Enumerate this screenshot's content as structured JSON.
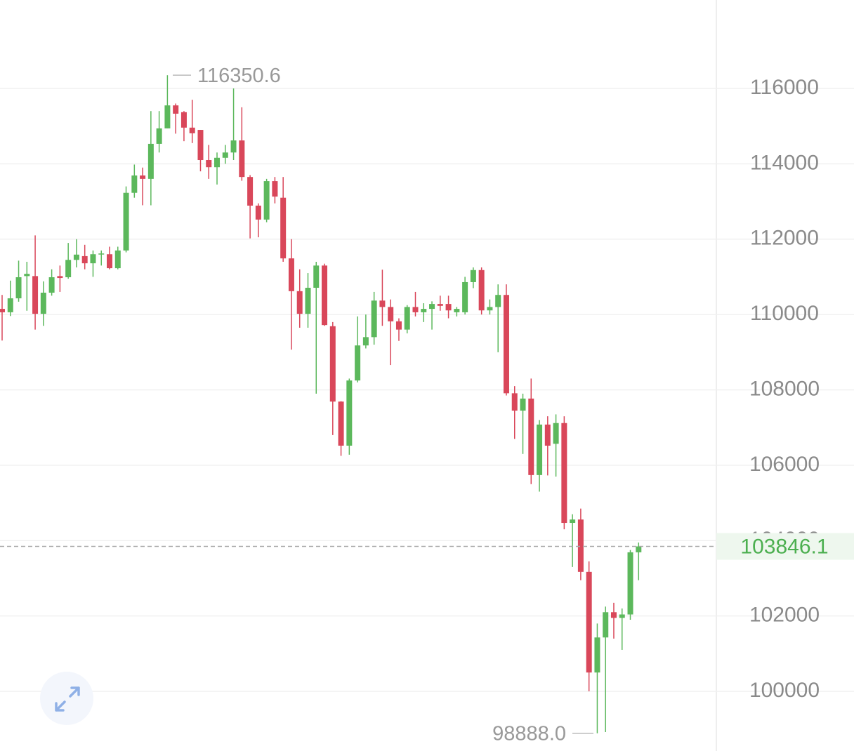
{
  "chart_data": {
    "type": "candlestick",
    "open": [
      110150,
      110060,
      110430,
      111020,
      111020,
      110020,
      110580,
      111020,
      110990,
      111450,
      111550,
      111360,
      111600,
      111600,
      111230,
      111700,
      113230,
      113690,
      113600,
      114530,
      114940,
      115550,
      115370,
      114960,
      114900,
      114100,
      113910,
      114160,
      114300,
      114620,
      113650,
      112890,
      112520,
      113540,
      113100,
      111490,
      110620,
      110020,
      110710,
      111300,
      109690,
      107690,
      106520,
      108250,
      109180,
      109400,
      110370,
      110200,
      109820,
      109600,
      110200,
      110060,
      110150,
      110280,
      110280,
      110060,
      110060,
      110860,
      111180,
      110110,
      110200,
      110520,
      107910,
      107450,
      107770,
      105740,
      107080,
      106570,
      107120,
      104470,
      104560,
      103170,
      100500,
      101430,
      102100,
      101950,
      102040,
      103690
    ],
    "high": [
      110520,
      110900,
      111430,
      111400,
      112100,
      110880,
      111200,
      111300,
      111900,
      112000,
      111850,
      111700,
      111700,
      111800,
      111800,
      113400,
      113980,
      113900,
      115400,
      115400,
      116350.6,
      115600,
      115400,
      115700,
      114900,
      114500,
      114300,
      114500,
      116000,
      115500,
      113700,
      112950,
      113600,
      113650,
      113650,
      112000,
      111200,
      111100,
      111400,
      111350,
      109800,
      107700,
      108300,
      109950,
      110000,
      110600,
      111190,
      110400,
      109900,
      110250,
      110600,
      110300,
      110350,
      110500,
      110500,
      110200,
      111000,
      111250,
      111250,
      110400,
      110800,
      110800,
      108100,
      107900,
      108300,
      107200,
      107300,
      107350,
      107300,
      104700,
      104850,
      103450,
      101800,
      102250,
      102350,
      102200,
      103750,
      103950
    ],
    "low": [
      109310,
      109960,
      110340,
      110100,
      109600,
      109700,
      110500,
      110600,
      110950,
      111250,
      111200,
      111000,
      111300,
      111200,
      111200,
      111650,
      113100,
      112900,
      112900,
      114300,
      114940,
      114800,
      114600,
      114550,
      113800,
      113600,
      113450,
      114000,
      114100,
      113550,
      112020,
      112050,
      112450,
      112950,
      111400,
      109070,
      109650,
      109650,
      107900,
      109700,
      106800,
      106250,
      106280,
      108200,
      109100,
      109200,
      109700,
      108660,
      109300,
      109500,
      109950,
      109800,
      109600,
      110100,
      109900,
      109950,
      110000,
      110700,
      110000,
      110000,
      109000,
      107850,
      106700,
      106300,
      105500,
      105300,
      105730,
      105700,
      104300,
      103300,
      102950,
      100000,
      98888,
      98920,
      101400,
      101100,
      101900,
      102950
    ],
    "close": [
      110060,
      110430,
      110990,
      111080,
      110020,
      110580,
      110990,
      110970,
      111450,
      111590,
      111360,
      111600,
      111620,
      111230,
      111700,
      113230,
      113690,
      113600,
      114530,
      114940,
      115550,
      115330,
      114960,
      114810,
      114100,
      113910,
      114160,
      114300,
      114620,
      113650,
      112890,
      112520,
      113540,
      113130,
      111490,
      110620,
      110020,
      110710,
      111300,
      109720,
      107690,
      106520,
      108250,
      109180,
      109400,
      110370,
      110200,
      109820,
      109600,
      110200,
      110060,
      110150,
      110280,
      110230,
      110110,
      110150,
      110860,
      111180,
      110110,
      110200,
      110520,
      107910,
      107450,
      107770,
      105740,
      107080,
      106520,
      107120,
      104470,
      104560,
      103170,
      100500,
      101430,
      102100,
      101950,
      102040,
      103690,
      103846.1
    ],
    "up_color": "#5cb85c",
    "down_color": "#d9475a",
    "ylim": [
      98417,
      118347
    ],
    "yticks": [
      100000,
      102000,
      104000,
      106000,
      108000,
      110000,
      112000,
      114000,
      116000
    ],
    "grid": true,
    "max_marker": 116350.6,
    "min_marker": {
      "value": 98888,
      "label": "98888.0"
    },
    "last_price": 103846.1
  }
}
